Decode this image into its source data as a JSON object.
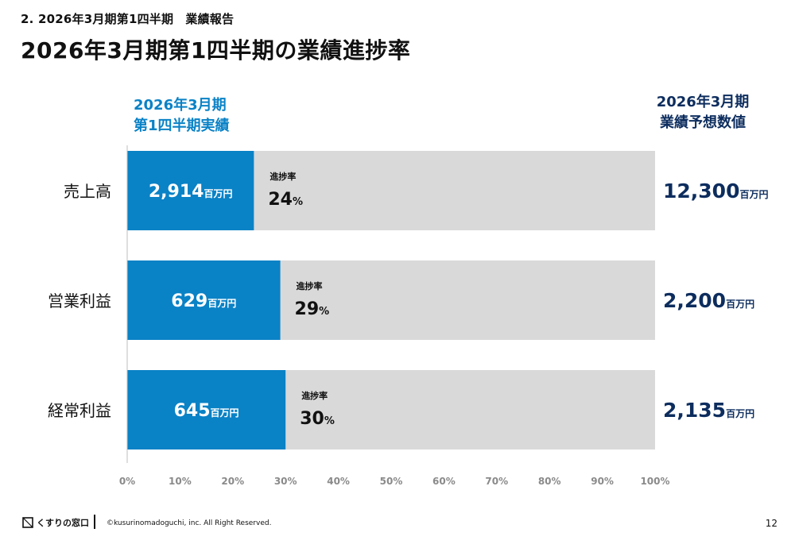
{
  "header": {
    "section_label": "2. 2026年3月期第1四半期　業績報告",
    "title": "2026年3月期第1四半期の業績進捗率"
  },
  "columns": {
    "actual_line1": "2026年3月期",
    "actual_line2": "第1四半期実績",
    "forecast_line1": "2026年3月期",
    "forecast_line2": "業績予想数値"
  },
  "chart_data": {
    "type": "bar",
    "orientation": "horizontal",
    "categories": [
      "売上高",
      "営業利益",
      "経常利益"
    ],
    "series": [
      {
        "name": "2026年3月期 第1四半期実績",
        "values": [
          2914,
          629,
          645
        ]
      },
      {
        "name": "2026年3月期 業績予想数値",
        "values": [
          12300,
          2200,
          2135
        ]
      }
    ],
    "actual_labels": [
      "2,914",
      "629",
      "645"
    ],
    "forecast_labels": [
      "12,300",
      "2,200",
      "2,135"
    ],
    "progress_percent": [
      24,
      29,
      30
    ],
    "progress_label": "進捗率",
    "unit": "百万円",
    "percent_sign": "%",
    "xlim": [
      0,
      100
    ],
    "x_ticks": [
      "0%",
      "10%",
      "20%",
      "30%",
      "40%",
      "50%",
      "60%",
      "70%",
      "80%",
      "90%",
      "100%"
    ],
    "colors": {
      "actual": "#0a82c6",
      "remaining": "#d9d9d9",
      "forecast_text": "#0d2d5e"
    },
    "grid": false
  },
  "footer": {
    "brand": "くすりの窓口",
    "copyright": "©kusurinomadoguchi, inc. All Right Reserved.",
    "page": "12"
  }
}
